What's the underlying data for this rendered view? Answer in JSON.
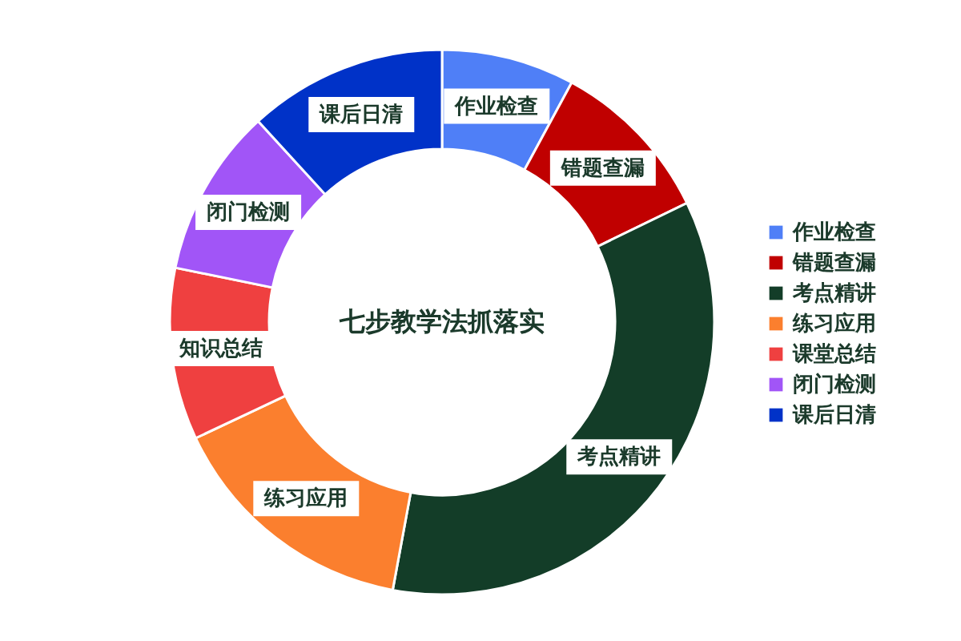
{
  "chart_data": {
    "type": "donut",
    "title": "七步教学法抓落实",
    "categories": [
      "作业检查",
      "错题查漏",
      "考点精讲",
      "练习应用",
      "课堂总结",
      "闭门检测",
      "课后日清"
    ],
    "values": [
      7.9,
      9.9,
      35.1,
      15.1,
      10.2,
      10.0,
      11.8
    ],
    "colors": [
      "#4f7ff7",
      "#c00000",
      "#133d28",
      "#fb7f2e",
      "#ef4040",
      "#a155f7",
      "#0032c8"
    ],
    "value_labels": [
      "作业检查",
      "错题查漏",
      "考点精讲",
      "练习应用",
      "知识总结",
      "闭门检测",
      "课后日清"
    ],
    "legend": "right"
  }
}
